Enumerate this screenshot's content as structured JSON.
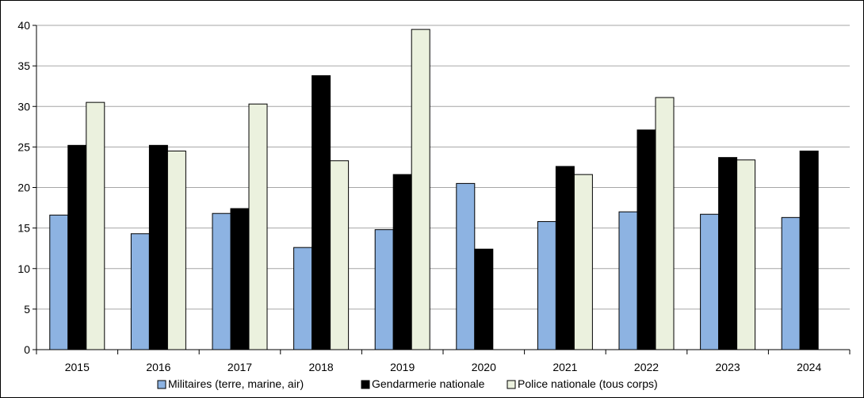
{
  "chart_data": {
    "type": "bar",
    "title": "",
    "xlabel": "",
    "ylabel": "",
    "categories": [
      "2015",
      "2016",
      "2017",
      "2018",
      "2019",
      "2020",
      "2021",
      "2022",
      "2023",
      "2024"
    ],
    "ylim": [
      0,
      40
    ],
    "yticks": [
      "0",
      "5",
      "10",
      "15",
      "20",
      "25",
      "30",
      "35",
      "40"
    ],
    "grid": true,
    "legend_position": "bottom",
    "series": [
      {
        "name": "Militaires (terre, marine, air)",
        "color": "#8db3e2",
        "values": [
          16.6,
          14.3,
          16.8,
          12.6,
          14.8,
          20.5,
          15.8,
          17.0,
          16.7,
          16.3
        ]
      },
      {
        "name": "Gendarmerie nationale",
        "color": "#000000",
        "values": [
          25.2,
          25.2,
          17.4,
          33.8,
          21.6,
          12.4,
          22.6,
          27.1,
          23.7,
          24.5
        ]
      },
      {
        "name": "Police nationale (tous corps)",
        "color": "#ebf1de",
        "values": [
          30.5,
          24.5,
          30.3,
          23.3,
          39.5,
          null,
          21.6,
          31.1,
          23.4,
          null
        ]
      }
    ]
  }
}
